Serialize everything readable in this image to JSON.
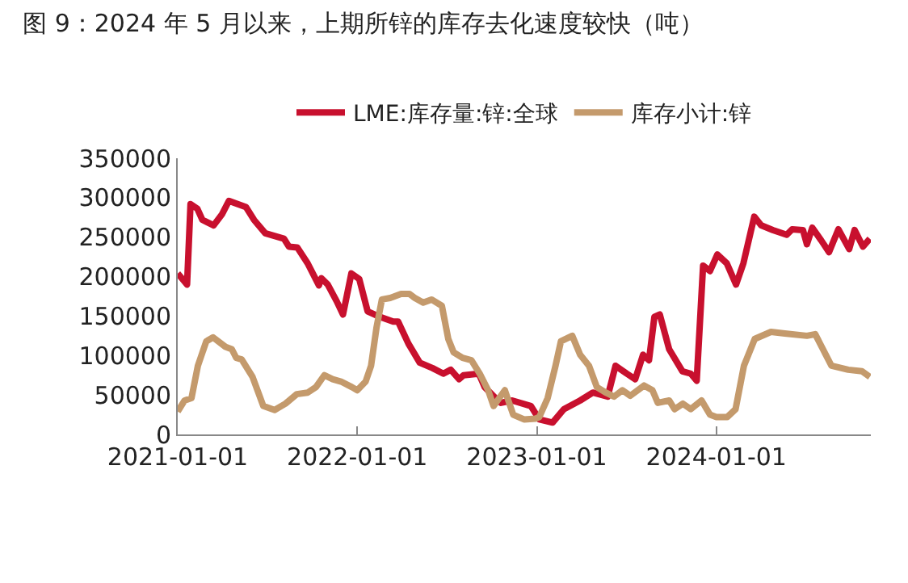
{
  "chart_data": {
    "type": "line",
    "title": "图 9：2024 年 5 月以来，上期所锌的库存去化速度较快（吨）",
    "xlim": [
      "2021-01-01",
      "2024-11-10"
    ],
    "xticks": [
      "2021-01-01",
      "2022-01-01",
      "2023-01-01",
      "2024-01-01"
    ],
    "ylim": [
      0,
      350000
    ],
    "yticks": [
      0,
      50000,
      100000,
      150000,
      200000,
      250000,
      300000,
      350000
    ],
    "legend": "top",
    "marker": "none",
    "line_style": "solid",
    "series": [
      {
        "name": "LME:库存量:锌:全球",
        "color": "#c8102e",
        "x": [
          "2021-01-01",
          "2021-01-20",
          "2021-01-27",
          "2021-02-10",
          "2021-02-20",
          "2021-03-15",
          "2021-04-01",
          "2021-04-15",
          "2021-05-20",
          "2021-06-05",
          "2021-06-28",
          "2021-08-05",
          "2021-08-15",
          "2021-09-01",
          "2021-09-22",
          "2021-10-15",
          "2021-10-20",
          "2021-11-02",
          "2021-11-20",
          "2021-12-03",
          "2021-12-20",
          "2022-01-05",
          "2022-01-22",
          "2022-02-12",
          "2022-03-15",
          "2022-03-25",
          "2022-04-15",
          "2022-05-08",
          "2022-06-03",
          "2022-06-25",
          "2022-07-10",
          "2022-07-27",
          "2022-08-05",
          "2022-09-05",
          "2022-09-17",
          "2022-10-09",
          "2022-10-20",
          "2022-11-12",
          "2022-12-20",
          "2023-01-06",
          "2023-02-02",
          "2023-02-25",
          "2023-03-30",
          "2023-04-25",
          "2023-05-25",
          "2023-06-10",
          "2023-07-03",
          "2023-07-20",
          "2023-08-05",
          "2023-08-17",
          "2023-08-28",
          "2023-09-08",
          "2023-09-27",
          "2023-10-24",
          "2023-11-10",
          "2023-11-22",
          "2023-12-05",
          "2023-12-19",
          "2024-01-03",
          "2024-01-22",
          "2024-02-10",
          "2024-02-25",
          "2024-03-18",
          "2024-04-01",
          "2024-04-25",
          "2024-05-23",
          "2024-06-03",
          "2024-06-25",
          "2024-07-03",
          "2024-07-14",
          "2024-08-01",
          "2024-08-17",
          "2024-09-05",
          "2024-09-27",
          "2024-10-08",
          "2024-10-25",
          "2024-11-08"
        ],
        "values": [
          204000,
          190000,
          292000,
          286000,
          272000,
          265000,
          279000,
          296000,
          288000,
          272000,
          255000,
          248000,
          238000,
          237000,
          217000,
          189000,
          198000,
          190000,
          169000,
          152000,
          204000,
          197000,
          156000,
          150000,
          143000,
          143000,
          115000,
          91000,
          84000,
          77000,
          82000,
          70000,
          75000,
          77000,
          60000,
          46000,
          40000,
          43000,
          36000,
          19000,
          15000,
          32000,
          43000,
          53000,
          48000,
          87000,
          77000,
          70000,
          101000,
          94000,
          149000,
          152000,
          108000,
          80000,
          77000,
          68000,
          214000,
          207000,
          228000,
          217000,
          190000,
          217000,
          276000,
          265000,
          259000,
          253000,
          260000,
          259000,
          241000,
          262000,
          246000,
          231000,
          260000,
          235000,
          259000,
          238000,
          248000
        ]
      },
      {
        "name": "库存小计:锌",
        "color": "#c49a6c",
        "x": [
          "2021-01-01",
          "2021-01-15",
          "2021-01-29",
          "2021-02-11",
          "2021-02-28",
          "2021-03-14",
          "2021-04-08",
          "2021-04-21",
          "2021-04-30",
          "2021-05-11",
          "2021-06-02",
          "2021-06-24",
          "2021-07-17",
          "2021-08-08",
          "2021-08-31",
          "2021-09-22",
          "2021-10-09",
          "2021-10-26",
          "2021-11-12",
          "2021-11-29",
          "2021-12-21",
          "2022-01-01",
          "2022-01-18",
          "2022-01-29",
          "2022-02-09",
          "2022-02-20",
          "2022-03-09",
          "2022-03-31",
          "2022-04-17",
          "2022-04-28",
          "2022-05-15",
          "2022-06-01",
          "2022-06-22",
          "2022-07-05",
          "2022-07-16",
          "2022-08-03",
          "2022-08-21",
          "2022-09-07",
          "2022-09-24",
          "2022-10-05",
          "2022-10-28",
          "2022-11-14",
          "2022-12-06",
          "2022-12-29",
          "2023-01-06",
          "2023-01-23",
          "2023-02-08",
          "2023-02-19",
          "2023-03-14",
          "2023-03-30",
          "2023-04-17",
          "2023-05-03",
          "2023-05-21",
          "2023-06-07",
          "2023-06-24",
          "2023-07-10",
          "2023-08-07",
          "2023-08-24",
          "2023-09-04",
          "2023-09-27",
          "2023-10-08",
          "2023-10-25",
          "2023-11-10",
          "2023-12-02",
          "2023-12-19",
          "2024-01-01",
          "2024-01-23",
          "2024-02-09",
          "2024-02-26",
          "2024-03-19",
          "2024-04-21",
          "2024-05-19",
          "2024-07-03",
          "2024-07-20",
          "2024-08-22",
          "2024-09-25",
          "2024-10-23",
          "2024-11-08"
        ],
        "values": [
          29000,
          43000,
          46000,
          87000,
          118000,
          123000,
          111000,
          108000,
          97000,
          95000,
          73000,
          36000,
          31000,
          39000,
          51000,
          53000,
          60000,
          75000,
          70000,
          67000,
          60000,
          56000,
          67000,
          87000,
          135000,
          171000,
          173000,
          178000,
          178000,
          173000,
          167000,
          171000,
          163000,
          121000,
          104000,
          97000,
          94000,
          77000,
          56000,
          36000,
          56000,
          25000,
          19000,
          20000,
          22000,
          46000,
          87000,
          118000,
          125000,
          101000,
          87000,
          60000,
          53000,
          48000,
          56000,
          49000,
          62000,
          56000,
          40000,
          43000,
          32000,
          39000,
          32000,
          43000,
          25000,
          22000,
          22000,
          32000,
          87000,
          121000,
          130000,
          128000,
          125000,
          127000,
          87000,
          82000,
          80000,
          73000
        ]
      }
    ]
  }
}
